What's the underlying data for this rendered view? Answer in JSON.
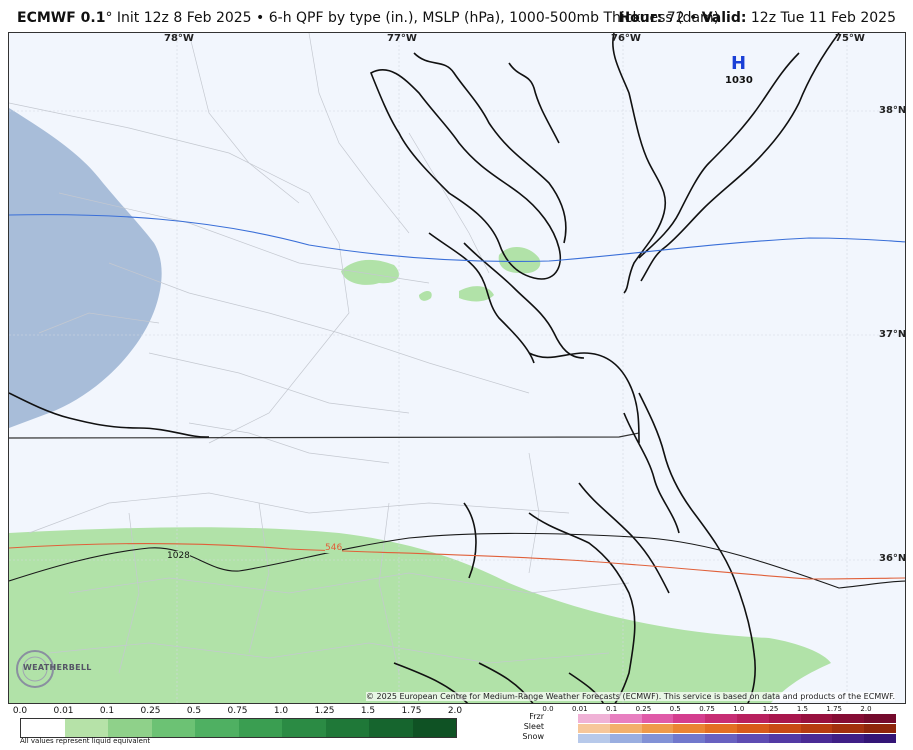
{
  "header": {
    "model": "ECMWF 0.1",
    "deg": "°",
    "desc": "Init 12z 8 Feb 2025 • 6-h QPF by type (in.), MSLP (hPa), 1000-500mb Thickness (dam)",
    "hour_label": "Hour:",
    "hour": "72",
    "sep": "•",
    "valid_label": "Valid:",
    "valid": "12z Tue 11 Feb 2025"
  },
  "map": {
    "longitudes": [
      "78°W",
      "77°W",
      "76°W",
      "75°W"
    ],
    "latitudes": [
      "38°N",
      "37°N",
      "36°N"
    ],
    "high_label": "H",
    "high_value": "1030",
    "isobar_label": "1028",
    "thickness_label": "546",
    "credit": "© 2025 European Centre for Medium-Range Weather Forecasts (ECMWF). This service is based on data and products of the ECMWF.",
    "logo_text": "WEATHERBELL",
    "colors": {
      "rain_light": "#b1e2a8",
      "snow_light": "#a8bdd9",
      "thickness_line": "#e0603a",
      "thickness_cold": "#3a6fd8",
      "background": "#f2f6fd"
    }
  },
  "legend": {
    "rain_ticks": [
      "0.0",
      "0.01",
      "0.1",
      "0.25",
      "0.5",
      "0.75",
      "1.0",
      "1.25",
      "1.5",
      "1.75",
      "2.0"
    ],
    "rain_colors": [
      "#ffffff",
      "#b6e2a8",
      "#8fd18a",
      "#6cc274",
      "#4fb062",
      "#3a9e51",
      "#2b8b44",
      "#1f7838",
      "#16652e",
      "#0f5224"
    ],
    "note": "All values represent liquid equivalent",
    "ptype_labels": [
      "Frzr",
      "Sleet",
      "Snow"
    ],
    "ptype_ticks": [
      "0.0",
      "0.01",
      "0.1",
      "0.25",
      "0.5",
      "0.75",
      "1.0",
      "1.25",
      "1.5",
      "1.75",
      "2.0"
    ],
    "frzr_colors": [
      "#f0b2d6",
      "#e87fc0",
      "#e05aa8",
      "#d43d8e",
      "#c72d74",
      "#b8205e",
      "#a8164c",
      "#97103e",
      "#850c34",
      "#740a2c"
    ],
    "sleet_colors": [
      "#f7c79a",
      "#f3b06b",
      "#ef9a4a",
      "#ea8433",
      "#e36f23",
      "#d85b1a",
      "#c94a14",
      "#b73c10",
      "#a3300d",
      "#8f250a"
    ],
    "snow_colors": [
      "#b7c9ea",
      "#9aaee0",
      "#8292d6",
      "#7178cc",
      "#6861c0",
      "#5e4cb2",
      "#533aa4",
      "#4a2b95",
      "#3f1f86",
      "#331576"
    ]
  }
}
